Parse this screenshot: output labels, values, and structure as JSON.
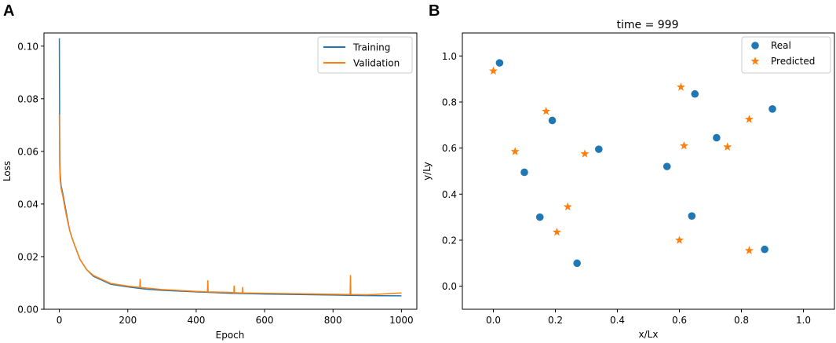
{
  "panels": {
    "a": "A",
    "b": "B"
  },
  "chart_data": [
    {
      "type": "line",
      "panel": "A",
      "xlabel": "Epoch",
      "ylabel": "Loss",
      "xlim": [
        -45,
        1045
      ],
      "ylim": [
        0,
        0.105
      ],
      "xticks": [
        0,
        200,
        400,
        600,
        800,
        1000
      ],
      "yticks": [
        0.0,
        0.02,
        0.04,
        0.06,
        0.08,
        0.1
      ],
      "xtick_labels": [
        "0",
        "200",
        "400",
        "600",
        "800",
        "1000"
      ],
      "ytick_labels": [
        "0.00",
        "0.02",
        "0.04",
        "0.06",
        "0.08",
        "0.10"
      ],
      "legend": "top-right",
      "series": [
        {
          "name": "Training",
          "color": "#1f77b4",
          "x": [
            0,
            1,
            2,
            5,
            10,
            20,
            30,
            40,
            60,
            80,
            100,
            150,
            200,
            250,
            300,
            400,
            500,
            600,
            700,
            800,
            900,
            1000
          ],
          "values": [
            0.103,
            0.065,
            0.052,
            0.047,
            0.044,
            0.037,
            0.03,
            0.026,
            0.019,
            0.015,
            0.0125,
            0.0095,
            0.0085,
            0.0077,
            0.0072,
            0.0066,
            0.0061,
            0.0058,
            0.0056,
            0.0054,
            0.0052,
            0.0051
          ]
        },
        {
          "name": "Validation",
          "color": "#ff7f0e",
          "x": [
            0,
            1,
            2,
            5,
            10,
            20,
            30,
            40,
            60,
            80,
            100,
            150,
            200,
            235,
            236,
            237,
            300,
            400,
            433,
            434,
            435,
            500,
            510,
            511,
            512,
            535,
            536,
            537,
            600,
            700,
            800,
            850,
            851,
            852,
            900,
            1000
          ],
          "values": [
            0.074,
            0.055,
            0.05,
            0.046,
            0.043,
            0.036,
            0.03,
            0.026,
            0.019,
            0.015,
            0.0128,
            0.0098,
            0.0088,
            0.0083,
            0.0115,
            0.0083,
            0.0075,
            0.0068,
            0.0066,
            0.011,
            0.0066,
            0.0064,
            0.0063,
            0.009,
            0.0063,
            0.0062,
            0.0085,
            0.0062,
            0.0061,
            0.0059,
            0.0057,
            0.0056,
            0.013,
            0.0056,
            0.0055,
            0.0062
          ]
        }
      ]
    },
    {
      "type": "scatter",
      "panel": "B",
      "title": "time = 999",
      "xlabel": "x/Lx",
      "ylabel": "y/Ly",
      "xlim": [
        -0.1,
        1.1
      ],
      "ylim": [
        -0.1,
        1.1
      ],
      "xticks": [
        0.0,
        0.2,
        0.4,
        0.6,
        0.8,
        1.0
      ],
      "yticks": [
        0.0,
        0.2,
        0.4,
        0.6,
        0.8,
        1.0
      ],
      "xtick_labels": [
        "0.0",
        "0.2",
        "0.4",
        "0.6",
        "0.8",
        "1.0"
      ],
      "ytick_labels": [
        "0.0",
        "0.2",
        "0.4",
        "0.6",
        "0.8",
        "1.0"
      ],
      "legend": "top-right",
      "series": [
        {
          "name": "Real",
          "color": "#1f77b4",
          "marker": "circle",
          "points": [
            [
              0.02,
              0.97
            ],
            [
              0.19,
              0.72
            ],
            [
              0.1,
              0.495
            ],
            [
              0.34,
              0.595
            ],
            [
              0.15,
              0.3
            ],
            [
              0.27,
              0.1
            ],
            [
              0.56,
              0.52
            ],
            [
              0.65,
              0.835
            ],
            [
              0.72,
              0.645
            ],
            [
              0.64,
              0.305
            ],
            [
              0.9,
              0.77
            ],
            [
              0.875,
              0.16
            ]
          ]
        },
        {
          "name": "Predicted",
          "color": "#ff7f0e",
          "marker": "star",
          "points": [
            [
              0.0,
              0.935
            ],
            [
              0.17,
              0.76
            ],
            [
              0.07,
              0.585
            ],
            [
              0.295,
              0.575
            ],
            [
              0.24,
              0.345
            ],
            [
              0.205,
              0.235
            ],
            [
              0.605,
              0.865
            ],
            [
              0.615,
              0.61
            ],
            [
              0.755,
              0.605
            ],
            [
              0.6,
              0.2
            ],
            [
              0.825,
              0.725
            ],
            [
              0.825,
              0.155
            ]
          ]
        }
      ]
    }
  ]
}
